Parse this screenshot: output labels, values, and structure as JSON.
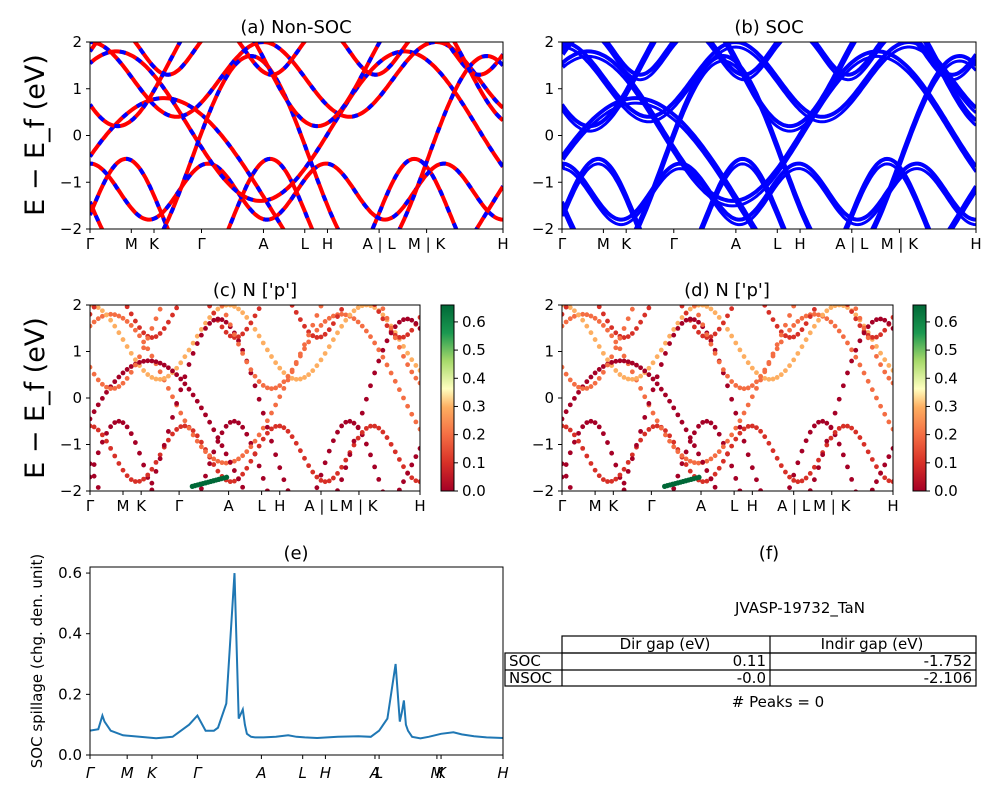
{
  "panels": {
    "a": {
      "title": "(a) Non-SOC"
    },
    "b": {
      "title": "(b) SOC"
    },
    "c": {
      "title": "(c)  N ['p']"
    },
    "d": {
      "title": "(d) N ['p']"
    },
    "e": {
      "title": "(e)",
      "ylabel": "SOC spillage (chg. den. unit)"
    },
    "f": {
      "title": "(f)"
    }
  },
  "band_ylabel": "E − E_f (eV)",
  "kpath_labels": [
    "Γ",
    "M",
    "K",
    "Γ",
    "A",
    "L",
    "H",
    "A | L",
    "M | K",
    "H"
  ],
  "spillage_labels": [
    "Γ",
    "M",
    "K",
    "Γ",
    "A",
    "L",
    "H",
    "A",
    "L",
    "M",
    "K",
    "H"
  ],
  "colorbar_ticks": [
    "0.0",
    "0.1",
    "0.2",
    "0.3",
    "0.4",
    "0.5",
    "0.6"
  ],
  "table": {
    "name": "JVASP-19732_TaN",
    "headers": [
      "",
      "Dir gap (eV)",
      "Indir gap (eV)"
    ],
    "rows": [
      [
        "SOC",
        "0.11",
        "-1.752"
      ],
      [
        "NSOC",
        "-0.0",
        "-2.106"
      ]
    ],
    "peaks": "# Peaks = 0"
  },
  "colors": {
    "nonsoc_a": "#ff0000",
    "nonsoc_b": "#0000ff",
    "soc": "#0000ff",
    "spillage": "#1f77b4"
  },
  "chart_data": [
    {
      "type": "line",
      "title": "(a) Non-SOC",
      "ylabel": "E − E_f (eV)",
      "ylim": [
        -2,
        2
      ],
      "x_ticks": [
        "Γ",
        "M",
        "K",
        "Γ",
        "A",
        "L",
        "H",
        "A | L",
        "M | K",
        "H"
      ],
      "series": []
    },
    {
      "type": "line",
      "title": "(b) SOC",
      "ylim": [
        -2,
        2
      ],
      "x_ticks": [
        "Γ",
        "M",
        "K",
        "Γ",
        "A",
        "L",
        "H",
        "A | L",
        "M | K",
        "H"
      ],
      "series": []
    },
    {
      "type": "scatter",
      "title": "(c)  N ['p']",
      "ylabel": "E − E_f (eV)",
      "ylim": [
        -2,
        2
      ],
      "colorbar_range": [
        0,
        0.65
      ]
    },
    {
      "type": "scatter",
      "title": "(d) N ['p']",
      "ylim": [
        -2,
        2
      ],
      "colorbar_range": [
        0,
        0.65
      ]
    },
    {
      "type": "line",
      "title": "(e)",
      "ylabel": "SOC spillage (chg. den. unit)",
      "ylim": [
        0,
        0.62
      ],
      "y_ticks": [
        0.0,
        0.2,
        0.4,
        0.6
      ],
      "x_ticks": [
        "Γ",
        "M",
        "K",
        "Γ",
        "A",
        "L",
        "H",
        "A",
        "L",
        "M",
        "K",
        "H"
      ],
      "series": [
        {
          "x": [
            0,
            0.02,
            0.03,
            0.035,
            0.05,
            0.08,
            0.12,
            0.16,
            0.2,
            0.24,
            0.26,
            0.28,
            0.3,
            0.31,
            0.33,
            0.35,
            0.36,
            0.37,
            0.375,
            0.38,
            0.385,
            0.39,
            0.4,
            0.42,
            0.45,
            0.48,
            0.5,
            0.52,
            0.55,
            0.6,
            0.65,
            0.68,
            0.7,
            0.72,
            0.74,
            0.75,
            0.755,
            0.76,
            0.765,
            0.77,
            0.775,
            0.78,
            0.8,
            0.82,
            0.85,
            0.88,
            0.9,
            0.93,
            0.96,
            1.0
          ],
          "y": [
            0.08,
            0.085,
            0.13,
            0.11,
            0.08,
            0.065,
            0.06,
            0.055,
            0.06,
            0.1,
            0.13,
            0.08,
            0.08,
            0.09,
            0.17,
            0.6,
            0.12,
            0.15,
            0.1,
            0.07,
            0.065,
            0.06,
            0.058,
            0.058,
            0.06,
            0.065,
            0.06,
            0.058,
            0.056,
            0.06,
            0.062,
            0.06,
            0.08,
            0.12,
            0.3,
            0.11,
            0.14,
            0.18,
            0.1,
            0.08,
            0.07,
            0.06,
            0.055,
            0.06,
            0.07,
            0.075,
            0.068,
            0.062,
            0.058,
            0.056
          ]
        }
      ]
    }
  ]
}
